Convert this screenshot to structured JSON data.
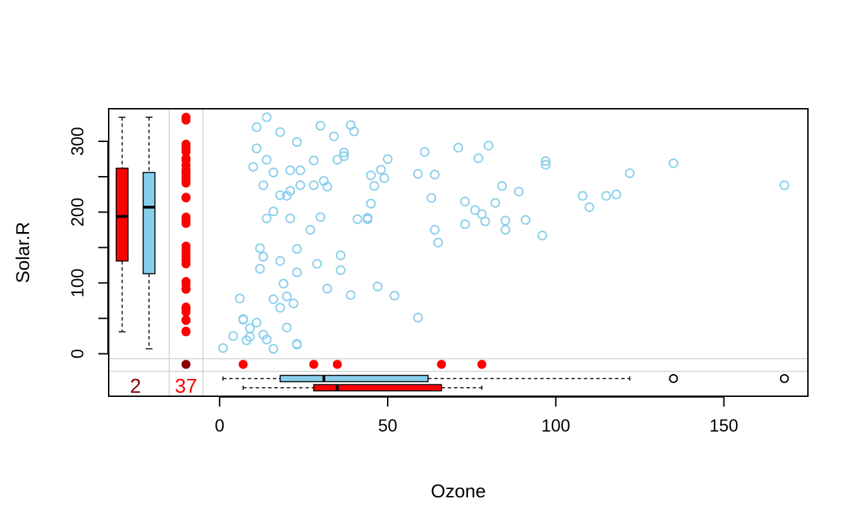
{
  "chart_data": {
    "type": "scatter",
    "title": "",
    "xlabel": "Ozone",
    "ylabel": "Solar.R",
    "xlim": [
      -33,
      175
    ],
    "ylim": [
      -60,
      346
    ],
    "xticks": [
      0,
      50,
      100,
      150
    ],
    "yticks": [
      0,
      100,
      200,
      300
    ],
    "grid": false,
    "colors": {
      "observed": "#87CEEB",
      "imputed": "#FF0000",
      "both_missing": "#8B0000",
      "count_both": "#8B0000",
      "count_solar": "#FF0000",
      "separator": "#D3D3D3"
    },
    "observed_points": [
      [
        41,
        190
      ],
      [
        36,
        118
      ],
      [
        12,
        149
      ],
      [
        18,
        313
      ],
      [
        28,
        273
      ],
      [
        23,
        299
      ],
      [
        19,
        99
      ],
      [
        8,
        19
      ],
      [
        16,
        256
      ],
      [
        11,
        290
      ],
      [
        14,
        274
      ],
      [
        18,
        65
      ],
      [
        14,
        334
      ],
      [
        34,
        307
      ],
      [
        6,
        78
      ],
      [
        30,
        322
      ],
      [
        11,
        44
      ],
      [
        1,
        8
      ],
      [
        11,
        320
      ],
      [
        4,
        25
      ],
      [
        32,
        92
      ],
      [
        23,
        13
      ],
      [
        45,
        252
      ],
      [
        115,
        223
      ],
      [
        37,
        279
      ],
      [
        29,
        127
      ],
      [
        71,
        291
      ],
      [
        39,
        323
      ],
      [
        23,
        148
      ],
      [
        21,
        191
      ],
      [
        37,
        284
      ],
      [
        20,
        37
      ],
      [
        12,
        120
      ],
      [
        13,
        137
      ],
      [
        135,
        269
      ],
      [
        49,
        248
      ],
      [
        32,
        236
      ],
      [
        64,
        175
      ],
      [
        40,
        314
      ],
      [
        77,
        276
      ],
      [
        97,
        267
      ],
      [
        97,
        272
      ],
      [
        85,
        175
      ],
      [
        10,
        264
      ],
      [
        27,
        175
      ],
      [
        7,
        48
      ],
      [
        48,
        260
      ],
      [
        35,
        274
      ],
      [
        61,
        285
      ],
      [
        79,
        187
      ],
      [
        63,
        220
      ],
      [
        16,
        7
      ],
      [
        80,
        294
      ],
      [
        108,
        223
      ],
      [
        20,
        81
      ],
      [
        52,
        82
      ],
      [
        82,
        213
      ],
      [
        50,
        275
      ],
      [
        64,
        253
      ],
      [
        59,
        254
      ],
      [
        39,
        83
      ],
      [
        9,
        24
      ],
      [
        16,
        77
      ],
      [
        122,
        255
      ],
      [
        89,
        229
      ],
      [
        110,
        207
      ],
      [
        44,
        192
      ],
      [
        28,
        238
      ],
      [
        65,
        157
      ],
      [
        22,
        71
      ],
      [
        59,
        51
      ],
      [
        23,
        115
      ],
      [
        31,
        244
      ],
      [
        44,
        190
      ],
      [
        21,
        259
      ],
      [
        9,
        36
      ],
      [
        45,
        212
      ],
      [
        168,
        238
      ],
      [
        73,
        215
      ],
      [
        76,
        203
      ],
      [
        118,
        225
      ],
      [
        84,
        237
      ],
      [
        85,
        188
      ],
      [
        96,
        167
      ],
      [
        78,
        197
      ],
      [
        73,
        183
      ],
      [
        91,
        189
      ],
      [
        47,
        95
      ],
      [
        24,
        259
      ],
      [
        21,
        230
      ],
      [
        46,
        237
      ],
      [
        18,
        224
      ],
      [
        13,
        27
      ],
      [
        24,
        238
      ],
      [
        16,
        201
      ],
      [
        13,
        238
      ],
      [
        23,
        14
      ],
      [
        36,
        139
      ],
      [
        7,
        49
      ],
      [
        14,
        20
      ],
      [
        30,
        193
      ],
      [
        14,
        191
      ],
      [
        18,
        131
      ],
      [
        20,
        223
      ]
    ],
    "imputed_ozone_points": [
      [
        -10,
        334
      ],
      [
        -10,
        330
      ],
      [
        -10,
        296
      ],
      [
        -10,
        293
      ],
      [
        -10,
        289
      ],
      [
        -10,
        285
      ],
      [
        -10,
        276
      ],
      [
        -10,
        273
      ],
      [
        -10,
        266
      ],
      [
        -10,
        260
      ],
      [
        -10,
        257
      ],
      [
        -10,
        254
      ],
      [
        -10,
        249
      ],
      [
        -10,
        244
      ],
      [
        -10,
        241
      ],
      [
        -10,
        221
      ],
      [
        -10,
        220
      ],
      [
        -10,
        193
      ],
      [
        -10,
        188
      ],
      [
        -10,
        184
      ],
      [
        -10,
        152
      ],
      [
        -10,
        147
      ],
      [
        -10,
        142
      ],
      [
        -10,
        137
      ],
      [
        -10,
        132
      ],
      [
        -10,
        127
      ],
      [
        -10,
        102
      ],
      [
        -10,
        98
      ],
      [
        -10,
        92
      ],
      [
        -10,
        91
      ],
      [
        -10,
        66
      ],
      [
        -10,
        63
      ],
      [
        -10,
        59
      ],
      [
        -10,
        48
      ],
      [
        -10,
        47
      ],
      [
        -10,
        31
      ],
      [
        -10,
        32
      ]
    ],
    "imputed_solar_points": [
      [
        7,
        -15
      ],
      [
        28,
        -15
      ],
      [
        35,
        -15
      ],
      [
        66,
        -15
      ],
      [
        78,
        -15
      ]
    ],
    "both_missing_point": [
      -10,
      -15
    ],
    "boxplots_solar": [
      {
        "group": "imputed",
        "min": 31,
        "q1": 131,
        "median": 194,
        "q3": 262,
        "max": 334
      },
      {
        "group": "observed",
        "min": 7,
        "q1": 113,
        "median": 207,
        "q3": 256,
        "max": 334
      }
    ],
    "boxplots_ozone": [
      {
        "group": "observed",
        "min": 1,
        "q1": 18,
        "median": 31,
        "q3": 62,
        "max": 122,
        "outliers": [
          135,
          168
        ]
      },
      {
        "group": "imputed",
        "min": 7,
        "q1": 28,
        "median": 35,
        "q3": 66,
        "max": 78,
        "outliers": []
      }
    ],
    "missing_counts": {
      "both": "2",
      "solar": "37"
    }
  }
}
